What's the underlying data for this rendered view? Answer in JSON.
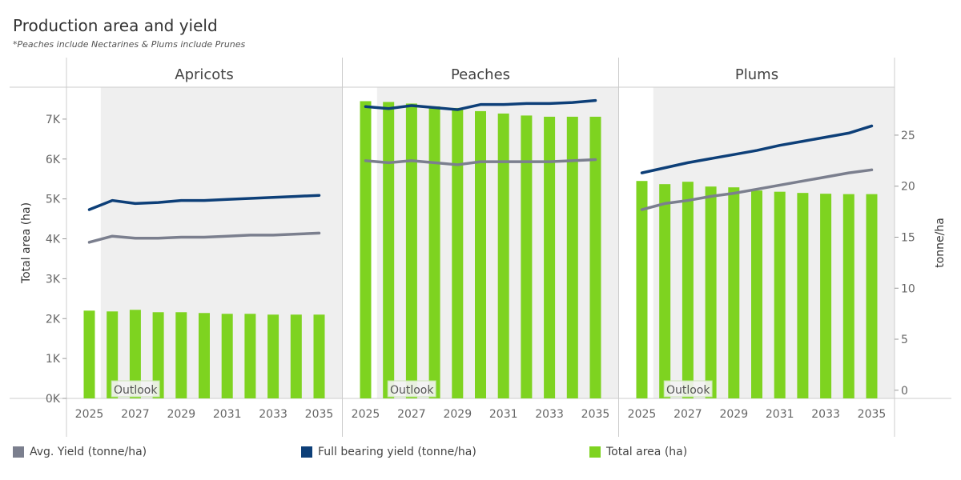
{
  "title": "Production area and yield",
  "subtitle": "*Peaches include Nectarines & Plums include Prunes",
  "colors": {
    "avg_yield": "#7b7f8e",
    "full_bearing": "#0d3f78",
    "total_area": "#7ed320",
    "outlook_bg": "#efefef",
    "grid": "#cccccc"
  },
  "chart_data": {
    "type": "bar+line",
    "years": [
      2025,
      2026,
      2027,
      2028,
      2029,
      2030,
      2031,
      2032,
      2033,
      2034,
      2035
    ],
    "x_tick_labels": [
      "2025",
      "2027",
      "2029",
      "2031",
      "2033",
      "2035"
    ],
    "left_axis": {
      "label": "Total area (ha)",
      "ylim": [
        0,
        7800
      ],
      "ticks": [
        0,
        1000,
        2000,
        3000,
        4000,
        5000,
        6000,
        7000
      ],
      "tick_labels": [
        "0K",
        "1K",
        "2K",
        "3K",
        "4K",
        "5K",
        "6K",
        "7K"
      ]
    },
    "right_axis": {
      "label": "tonne/ha",
      "ylim": [
        -0.8,
        29.7
      ],
      "ticks": [
        0,
        5,
        10,
        15,
        20,
        25
      ],
      "tick_labels": [
        "0",
        "5",
        "10",
        "15",
        "20",
        "25"
      ]
    },
    "outlook_label": "Outlook",
    "outlook_start_year": 2026,
    "panels": [
      {
        "name": "Apricots",
        "total_area": [
          2200,
          2180,
          2220,
          2160,
          2160,
          2140,
          2120,
          2120,
          2100,
          2100,
          2100
        ],
        "avg_yield": [
          14.5,
          15.1,
          14.9,
          14.9,
          15.0,
          15.0,
          15.1,
          15.2,
          15.2,
          15.3,
          15.4
        ],
        "full_bearing_yield": [
          17.7,
          18.6,
          18.3,
          18.4,
          18.6,
          18.6,
          18.7,
          18.8,
          18.9,
          19.0,
          19.1
        ]
      },
      {
        "name": "Peaches",
        "total_area": [
          7450,
          7430,
          7390,
          7320,
          7280,
          7200,
          7140,
          7090,
          7060,
          7060,
          7060
        ],
        "avg_yield": [
          22.5,
          22.3,
          22.5,
          22.3,
          22.1,
          22.4,
          22.4,
          22.4,
          22.4,
          22.5,
          22.6
        ],
        "full_bearing_yield": [
          27.8,
          27.6,
          27.9,
          27.7,
          27.5,
          28.0,
          28.0,
          28.1,
          28.1,
          28.2,
          28.4
        ]
      },
      {
        "name": "Plums",
        "total_area": [
          5450,
          5370,
          5430,
          5310,
          5290,
          5210,
          5180,
          5150,
          5130,
          5120,
          5120
        ],
        "avg_yield": [
          17.7,
          18.3,
          18.6,
          19.0,
          19.3,
          19.7,
          20.1,
          20.5,
          20.9,
          21.3,
          21.6
        ],
        "full_bearing_yield": [
          21.3,
          21.8,
          22.3,
          22.7,
          23.1,
          23.5,
          24.0,
          24.4,
          24.8,
          25.2,
          25.9
        ]
      }
    ]
  },
  "legend": [
    {
      "key": "avg_yield",
      "label": "Avg. Yield (tonne/ha)"
    },
    {
      "key": "full_bearing",
      "label": "Full bearing yield (tonne/ha)"
    },
    {
      "key": "total_area",
      "label": "Total area (ha)"
    }
  ]
}
